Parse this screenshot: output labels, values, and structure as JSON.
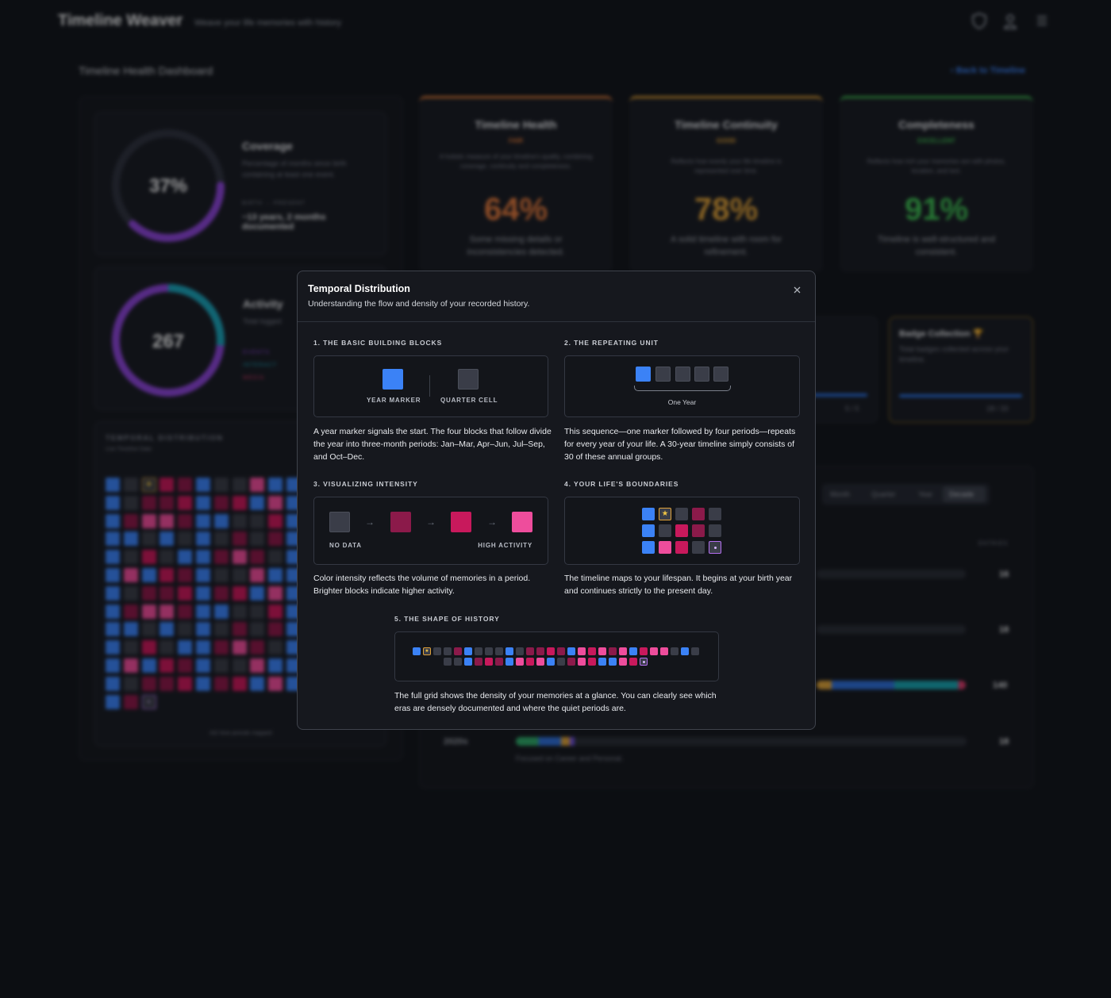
{
  "header": {
    "title": "Timeline Weaver",
    "tagline": "Weave your life memories with history"
  },
  "dashboard": {
    "title": "Timeline Health Dashboard",
    "back_link": "Back to Timeline",
    "coverage": {
      "value": "37%",
      "title": "Coverage",
      "description": "Percentage of months since birth containing at least one event.",
      "range_label": "BIRTH → PRESENT",
      "summary": "~13 years, 2 months documented"
    },
    "activity": {
      "value": "267",
      "title": "Activity",
      "description": "Total logged",
      "legend": [
        "EVENTS",
        "INTERACT",
        "MEDIA"
      ]
    },
    "metrics": [
      {
        "title": "Timeline Health",
        "rating": "FAIR",
        "description": "A holistic measure of your timeline's quality, combining coverage, continuity and completeness.",
        "value": "64%",
        "note": "Some missing details or inconsistencies detected."
      },
      {
        "title": "Timeline Continuity",
        "rating": "GOOD",
        "description": "Reflects how evenly your life timeline is represented over time.",
        "value": "78%",
        "note": "A solid timeline with room for refinement."
      },
      {
        "title": "Completeness",
        "rating": "EXCELLENT",
        "description": "Reflects how rich your memories are with photos, location, and text.",
        "value": "91%",
        "note": "Timeline is well-structured and consistent."
      }
    ],
    "temporal": {
      "title": "TEMPORAL DISTRIBUTION",
      "subtitle": "Live Timeline Data",
      "footer": "162 time periods mapped"
    },
    "progress_card": {
      "count": "5 / 5"
    },
    "badges": {
      "title": "Badge Collection",
      "description": "Total badges collected across your timeline.",
      "count": "18 / 33"
    },
    "periods": {
      "tabs": [
        "Month",
        "Quarter",
        "Year",
        "Decade"
      ],
      "entries_label": "ENTRIES",
      "counts": [
        "16",
        "18",
        "140",
        "18"
      ],
      "decade": "2020s",
      "decade_note": "Focused on Career and Personal."
    }
  },
  "modal": {
    "title": "Temporal Distribution",
    "subtitle": "Understanding the flow and density of your recorded history.",
    "sections": [
      {
        "heading": "1. THE BASIC BUILDING BLOCKS",
        "labels": [
          "YEAR MARKER",
          "QUARTER CELL"
        ],
        "text": "A year marker signals the start. The four blocks that follow divide the year into three-month periods: Jan–Mar, Apr–Jun, Jul–Sep, and Oct–Dec."
      },
      {
        "heading": "2. THE REPEATING UNIT",
        "labels": [
          "One Year"
        ],
        "text": "This sequence—one marker followed by four periods—repeats for every year of your life. A 30-year timeline simply consists of 30 of these annual groups."
      },
      {
        "heading": "3. VISUALIZING INTENSITY",
        "labels": [
          "NO DATA",
          "HIGH ACTIVITY"
        ],
        "text": "Color intensity reflects the volume of memories in a period. Brighter blocks indicate higher activity."
      },
      {
        "heading": "4. YOUR LIFE'S BOUNDARIES",
        "text": "The timeline maps to your lifespan. It begins at your birth year and continues strictly to the present day."
      },
      {
        "heading": "5. THE SHAPE OF HISTORY",
        "text": "The full grid shows the density of your memories at a glance. You can clearly see which eras are densely documented and where the quiet periods are."
      }
    ]
  }
}
